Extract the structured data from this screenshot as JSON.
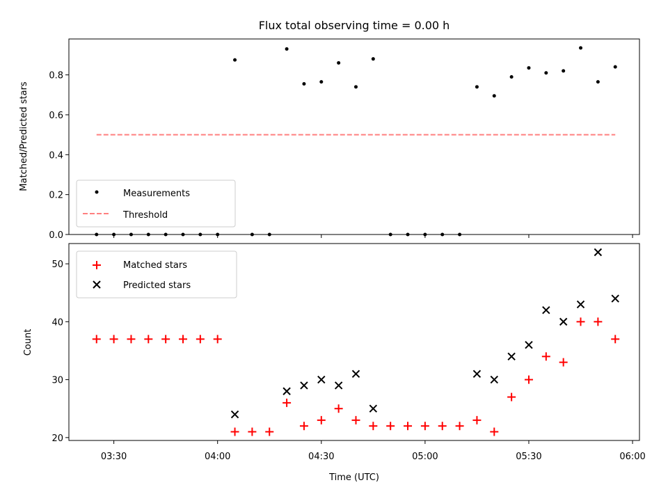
{
  "chart_data": [
    {
      "type": "scatter",
      "title": "Flux total observing time = 0.00 h",
      "ylabel": "Matched/Predicted stars",
      "xlim": [
        "03:17",
        "06:02"
      ],
      "ylim": [
        0,
        0.98
      ],
      "yticks": [
        "0.0",
        "0.2",
        "0.4",
        "0.6",
        "0.8"
      ],
      "ytick_values": [
        0,
        0.2,
        0.4,
        0.6,
        0.8
      ],
      "grid": false,
      "legend": "lower-left",
      "series": [
        {
          "name": "Measurements",
          "marker": "dot",
          "color": "#000000",
          "x": [
            "03:25",
            "03:30",
            "03:35",
            "03:40",
            "03:45",
            "03:50",
            "03:55",
            "04:00",
            "04:05",
            "04:10",
            "04:15",
            "04:20",
            "04:25",
            "04:30",
            "04:35",
            "04:40",
            "04:45",
            "04:50",
            "04:55",
            "05:00",
            "05:05",
            "05:10",
            "05:15",
            "05:20",
            "05:25",
            "05:30",
            "05:35",
            "05:40",
            "05:45",
            "05:50",
            "05:55"
          ],
          "y": [
            0,
            0,
            0,
            0,
            0,
            0,
            0,
            0,
            0.875,
            0,
            0,
            0.93,
            0.755,
            0.765,
            0.86,
            0.74,
            0.88,
            0,
            0,
            0,
            0,
            0,
            0.74,
            0.695,
            0.79,
            0.835,
            0.81,
            0.82,
            0.935,
            0.765,
            0.84
          ]
        },
        {
          "name": "Threshold",
          "style": "dashed",
          "color": "#ff7f7f",
          "x": [
            "03:25",
            "05:55"
          ],
          "y": [
            0.5,
            0.5
          ]
        }
      ]
    },
    {
      "type": "scatter",
      "xlabel": "Time (UTC)",
      "ylabel": "Count",
      "xlim": [
        "03:17",
        "06:02"
      ],
      "ylim": [
        19.5,
        53.5
      ],
      "xticks": [
        "03:30",
        "04:00",
        "04:30",
        "05:00",
        "05:30",
        "06:00"
      ],
      "yticks": [
        "20",
        "30",
        "40",
        "50"
      ],
      "ytick_values": [
        20,
        30,
        40,
        50
      ],
      "grid": false,
      "legend": "upper-left",
      "series": [
        {
          "name": "Matched stars",
          "marker": "plus",
          "color": "#ff0000",
          "x": [
            "03:25",
            "03:30",
            "03:35",
            "03:40",
            "03:45",
            "03:50",
            "03:55",
            "04:00",
            "04:05",
            "04:10",
            "04:15",
            "04:20",
            "04:25",
            "04:30",
            "04:35",
            "04:40",
            "04:45",
            "04:50",
            "04:55",
            "05:00",
            "05:05",
            "05:10",
            "05:15",
            "05:20",
            "05:25",
            "05:30",
            "05:35",
            "05:40",
            "05:45",
            "05:50",
            "05:55"
          ],
          "y": [
            37,
            37,
            37,
            37,
            37,
            37,
            37,
            37,
            21,
            21,
            21,
            26,
            22,
            23,
            25,
            23,
            22,
            22,
            22,
            22,
            22,
            22,
            23,
            21,
            27,
            30,
            34,
            33,
            40,
            40,
            37
          ]
        },
        {
          "name": "Predicted stars",
          "marker": "x",
          "color": "#000000",
          "x": [
            "04:05",
            "04:20",
            "04:25",
            "04:30",
            "04:35",
            "04:40",
            "04:45",
            "05:15",
            "05:20",
            "05:25",
            "05:30",
            "05:35",
            "05:40",
            "05:45",
            "05:50",
            "05:55"
          ],
          "y": [
            24,
            28,
            29,
            30,
            29,
            31,
            25,
            31,
            30,
            34,
            36,
            42,
            40,
            43,
            52,
            44
          ]
        }
      ]
    }
  ]
}
